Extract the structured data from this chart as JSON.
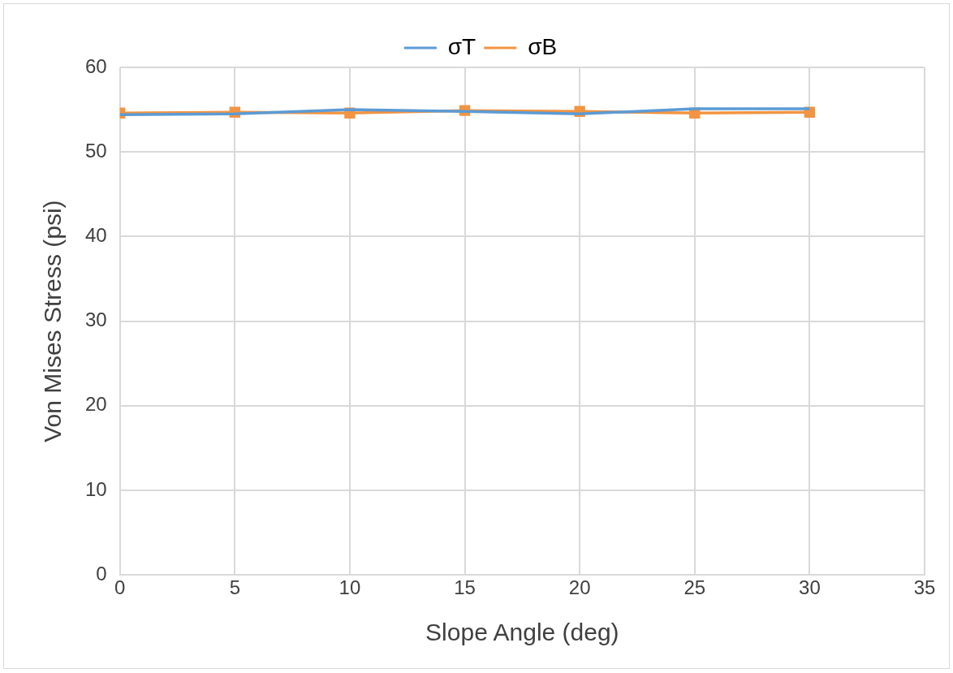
{
  "chart_data": {
    "type": "line",
    "xlabel": "Slope Angle (deg)",
    "ylabel": "Von Mises Stress (psi)",
    "x": [
      0,
      5,
      10,
      15,
      20,
      25,
      30
    ],
    "series": [
      {
        "name": "σT",
        "color": "#5b9bd5",
        "values": [
          54.4,
          54.5,
          55.0,
          54.8,
          54.5,
          55.1,
          55.1
        ],
        "marker": "none"
      },
      {
        "name": "σB",
        "color": "#f29441",
        "values": [
          54.6,
          54.7,
          54.6,
          54.9,
          54.8,
          54.6,
          54.7
        ],
        "marker": "square"
      }
    ],
    "xlim": [
      0,
      35
    ],
    "xticks": [
      0,
      5,
      10,
      15,
      20,
      25,
      30,
      35
    ],
    "ylim": [
      0,
      60
    ],
    "yticks": [
      0,
      10,
      20,
      30,
      40,
      50,
      60
    ],
    "grid": true,
    "legend": "top",
    "line_style": "solid"
  }
}
